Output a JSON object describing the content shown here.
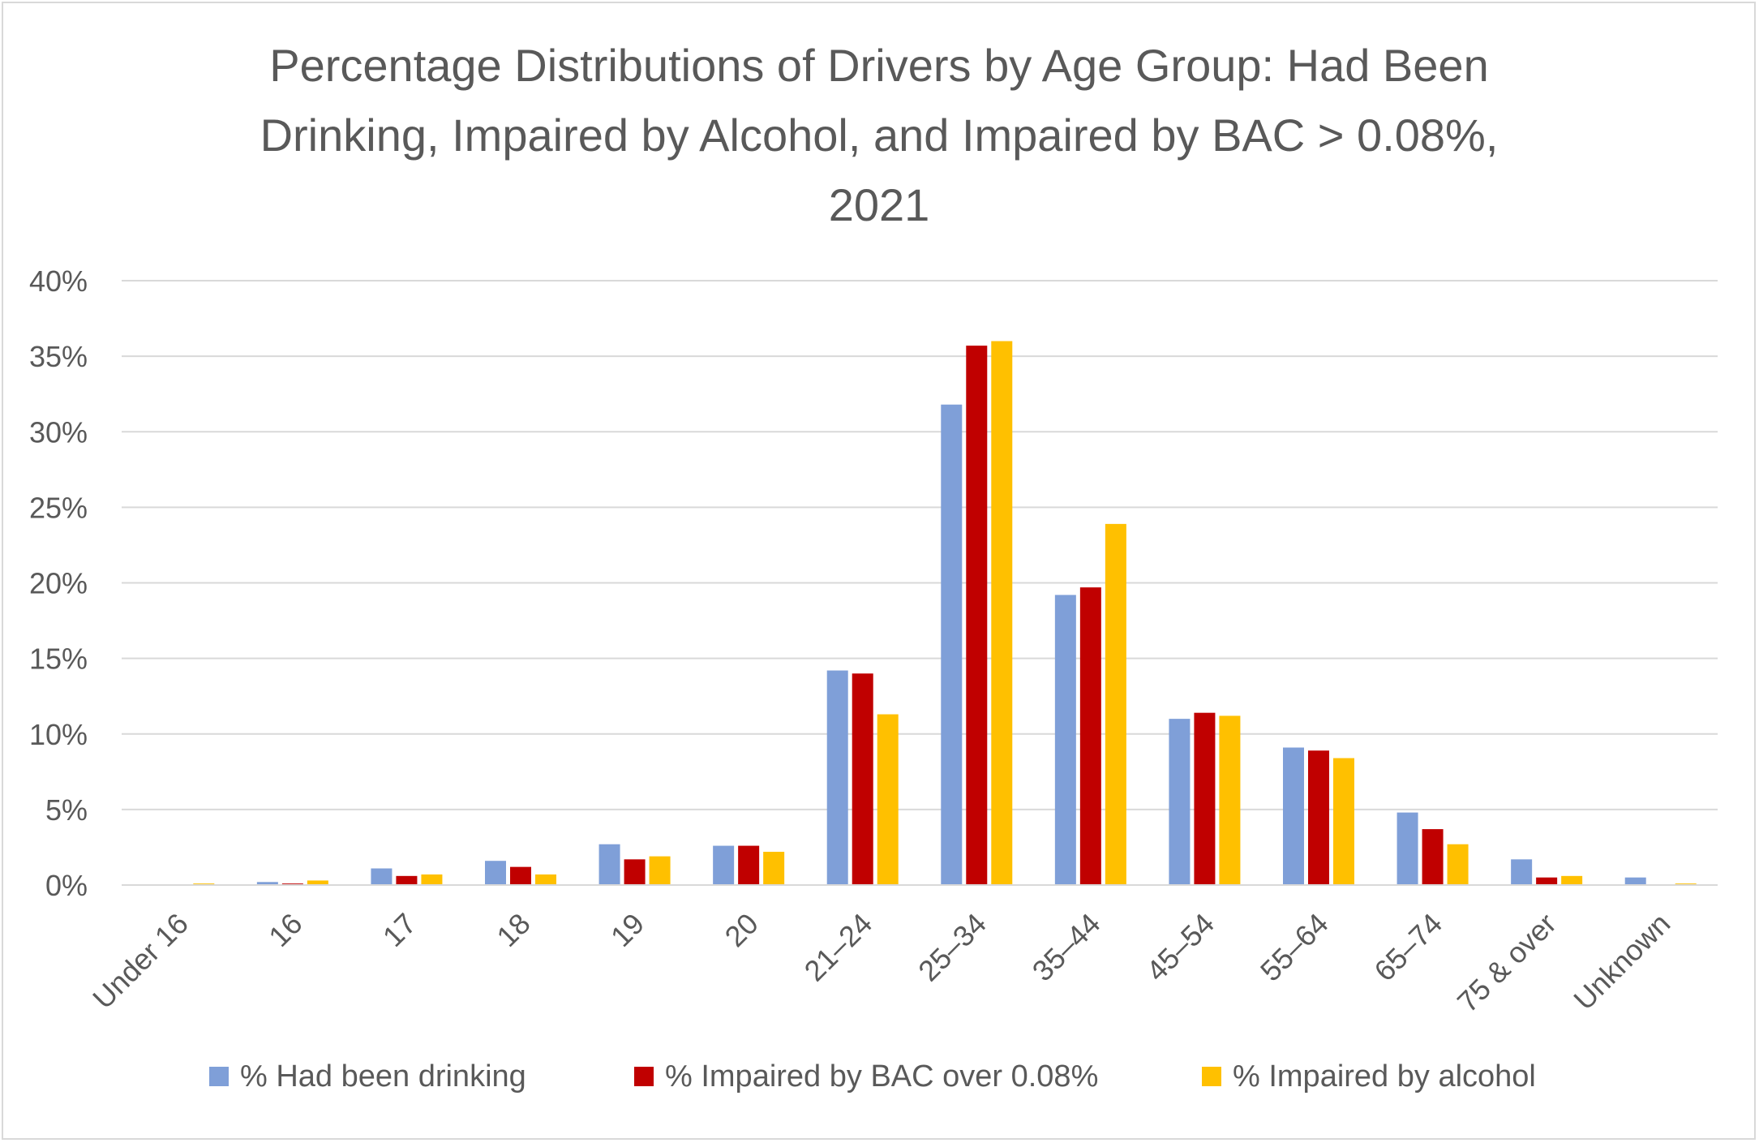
{
  "chart_data": {
    "type": "bar",
    "title_lines": [
      "Percentage Distributions of Drivers by Age Group: Had Been",
      "Drinking, Impaired by Alcohol, and Impaired by BAC > 0.08%,",
      "2021"
    ],
    "categories": [
      "Under 16",
      "16",
      "17",
      "18",
      "19",
      "20",
      "21–24",
      "25–34",
      "35–44",
      "45–54",
      "55–64",
      "65–74",
      "75 & over",
      "Unknown"
    ],
    "series": [
      {
        "name": "% Had been drinking",
        "color": "#7f9fd8",
        "values": [
          0.0,
          0.2,
          1.1,
          1.6,
          2.7,
          2.6,
          14.2,
          31.8,
          19.2,
          11.0,
          9.1,
          4.8,
          1.7,
          0.5
        ]
      },
      {
        "name": "% Impaired by BAC over 0.08%",
        "color": "#c00000",
        "values": [
          0.0,
          0.1,
          0.6,
          1.2,
          1.7,
          2.6,
          14.0,
          35.7,
          19.7,
          11.4,
          8.9,
          3.7,
          0.5,
          0.0
        ]
      },
      {
        "name": "% Impaired by alcohol",
        "color": "#ffc000",
        "values": [
          0.1,
          0.3,
          0.7,
          0.7,
          1.9,
          2.2,
          11.3,
          36.0,
          23.9,
          11.2,
          8.4,
          2.7,
          0.6,
          0.1
        ]
      }
    ],
    "ylim": [
      0,
      40
    ],
    "yticks": [
      0,
      5,
      10,
      15,
      20,
      25,
      30,
      35,
      40
    ],
    "ytick_labels": [
      "0%",
      "5%",
      "10%",
      "15%",
      "20%",
      "25%",
      "30%",
      "35%",
      "40%"
    ],
    "xlabel": "",
    "ylabel": "",
    "grid": true,
    "legend_position": "bottom"
  }
}
